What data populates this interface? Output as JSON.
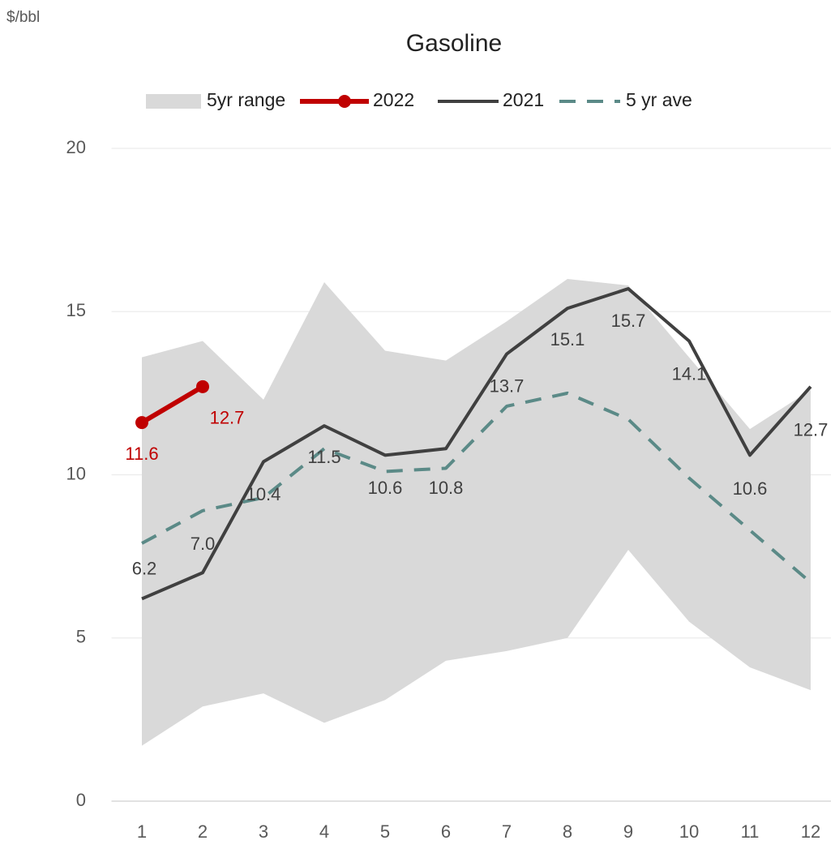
{
  "chart_data": {
    "type": "line",
    "title": "Gasoline",
    "y_label": "$/bbl",
    "x": [
      1,
      2,
      3,
      4,
      5,
      6,
      7,
      8,
      9,
      10,
      11,
      12
    ],
    "xlim": [
      0.5,
      12.5
    ],
    "ylim": [
      0,
      20
    ],
    "yticks": [
      0,
      5,
      10,
      15,
      20
    ],
    "grid": true,
    "legend": "top",
    "series": [
      {
        "name": "5yr range",
        "kind": "range",
        "color": "#d9d9d9",
        "high": [
          13.6,
          14.1,
          12.3,
          15.9,
          13.8,
          13.5,
          14.7,
          16.0,
          15.8,
          13.6,
          11.4,
          12.6
        ],
        "low": [
          1.7,
          2.9,
          3.3,
          2.4,
          3.1,
          4.3,
          4.6,
          5.0,
          7.7,
          5.5,
          4.1,
          3.4
        ]
      },
      {
        "name": "2022",
        "kind": "marker-line",
        "color": "#c00000",
        "values": [
          11.6,
          12.7,
          null,
          null,
          null,
          null,
          null,
          null,
          null,
          null,
          null,
          null
        ]
      },
      {
        "name": "2021",
        "kind": "line",
        "color": "#404040",
        "values": [
          6.2,
          7.0,
          10.4,
          11.5,
          10.6,
          10.8,
          13.7,
          15.1,
          15.7,
          14.1,
          10.6,
          12.7
        ],
        "value_labels": [
          "6.2",
          "7.0",
          "10.4",
          "11.5",
          "10.6",
          "10.8",
          "13.7",
          "15.1",
          "15.7",
          "14.1",
          "10.6",
          "12.7"
        ]
      },
      {
        "name": "5 yr ave",
        "kind": "dashed",
        "color": "#5b8a87",
        "values": [
          7.9,
          8.9,
          9.3,
          10.8,
          10.1,
          10.2,
          12.1,
          12.5,
          11.7,
          9.9,
          8.3,
          6.7
        ]
      }
    ]
  }
}
